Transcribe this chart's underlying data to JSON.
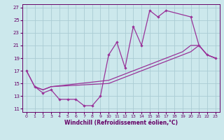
{
  "bg_color": "#cce8ec",
  "grid_color": "#aaccd4",
  "line_color": "#993399",
  "xlabel": "Windchill (Refroidissement éolien,°C)",
  "xlim": [
    -0.5,
    23.5
  ],
  "ylim": [
    10.5,
    27.5
  ],
  "xticks": [
    0,
    1,
    2,
    3,
    4,
    5,
    6,
    7,
    8,
    9,
    10,
    11,
    12,
    13,
    14,
    15,
    16,
    17,
    18,
    19,
    20,
    21,
    22,
    23
  ],
  "yticks": [
    11,
    13,
    15,
    17,
    19,
    21,
    23,
    25,
    27
  ],
  "curve1_x": [
    0,
    1,
    2,
    3,
    4,
    5,
    6,
    7,
    8,
    9,
    10,
    11,
    12,
    13,
    14,
    15,
    16,
    17,
    20,
    21,
    22,
    23
  ],
  "curve1_y": [
    17.0,
    14.5,
    13.5,
    14.0,
    12.5,
    12.5,
    12.5,
    11.5,
    11.5,
    13.0,
    19.5,
    21.5,
    17.5,
    24.0,
    21.0,
    26.5,
    25.5,
    26.5,
    25.5,
    21.0,
    19.5,
    19.0
  ],
  "curve2_x": [
    0,
    1,
    2,
    3,
    10,
    11,
    12,
    13,
    14,
    15,
    16,
    17,
    18,
    19,
    20,
    21,
    22,
    23
  ],
  "curve2_y": [
    17.0,
    14.5,
    14.0,
    14.5,
    15.5,
    16.0,
    16.5,
    17.0,
    17.5,
    18.0,
    18.5,
    19.0,
    19.5,
    20.0,
    21.0,
    21.0,
    19.5,
    19.0
  ],
  "curve3_x": [
    1,
    2,
    3,
    10,
    11,
    12,
    13,
    14,
    15,
    16,
    17,
    18,
    19,
    20,
    21,
    22,
    23
  ],
  "curve3_y": [
    14.5,
    14.0,
    14.5,
    15.0,
    15.5,
    16.0,
    16.5,
    17.0,
    17.5,
    18.0,
    18.5,
    19.0,
    19.5,
    20.0,
    21.0,
    19.5,
    19.0
  ]
}
